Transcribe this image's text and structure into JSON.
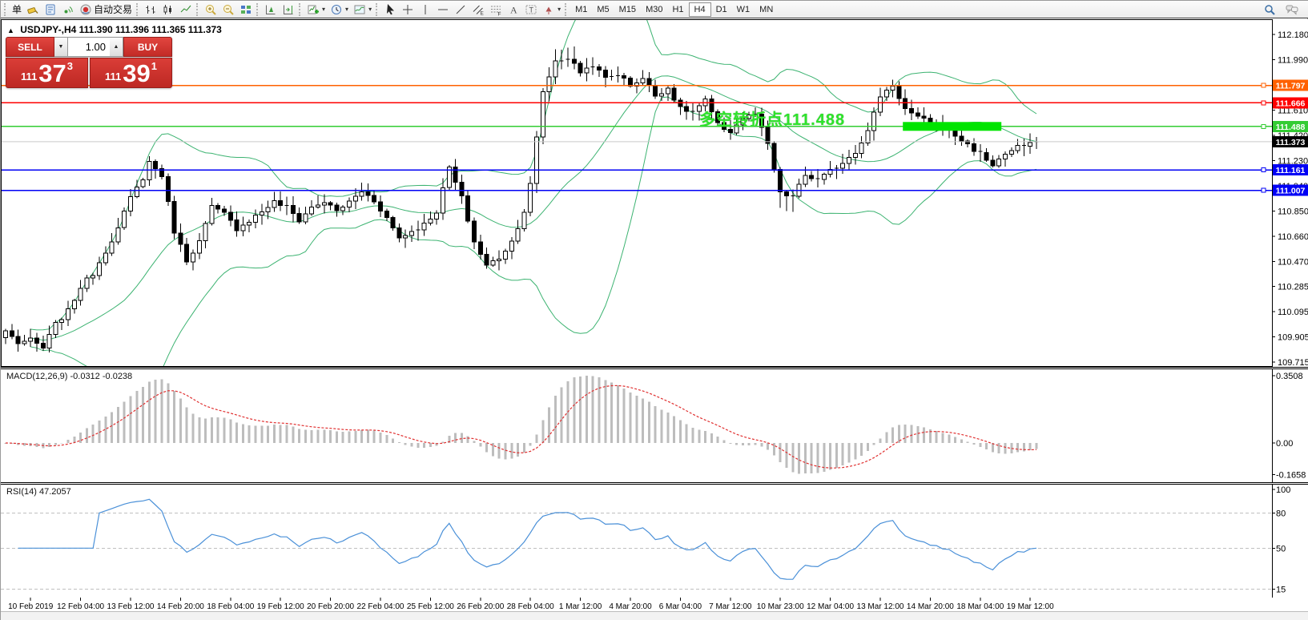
{
  "toolbar": {
    "groups": [
      {
        "items": [
          {
            "name": "new-order",
            "label": "单"
          },
          {
            "name": "styler"
          },
          {
            "name": "metaeditor"
          },
          {
            "name": "signals"
          },
          {
            "name": "autotrading",
            "label": "自动交易"
          }
        ]
      },
      {
        "items": [
          {
            "name": "bar-chart"
          },
          {
            "name": "candlestick-chart"
          },
          {
            "name": "line-chart"
          }
        ]
      },
      {
        "items": [
          {
            "name": "zoom-in"
          },
          {
            "name": "zoom-out"
          },
          {
            "name": "tile-windows"
          }
        ]
      },
      {
        "items": [
          {
            "name": "auto-scroll"
          },
          {
            "name": "chart-shift"
          }
        ]
      },
      {
        "items": [
          {
            "name": "indicators",
            "dropdown": true
          },
          {
            "name": "periods",
            "dropdown": true
          },
          {
            "name": "templates",
            "dropdown": true
          }
        ]
      },
      {
        "items": [
          {
            "name": "cursor"
          },
          {
            "name": "crosshair"
          },
          {
            "name": "vertical-line"
          },
          {
            "name": "horizontal-line"
          },
          {
            "name": "trendline"
          },
          {
            "name": "equidistant-channel"
          },
          {
            "name": "fibonacci"
          },
          {
            "name": "text"
          },
          {
            "name": "text-label"
          },
          {
            "name": "arrows",
            "dropdown": true
          }
        ]
      }
    ],
    "timeframes": [
      "M1",
      "M5",
      "M15",
      "M30",
      "H1",
      "H4",
      "D1",
      "W1",
      "MN"
    ],
    "active_timeframe": "H4",
    "right_icons": [
      {
        "name": "search"
      },
      {
        "name": "chat"
      }
    ]
  },
  "chart_header": {
    "collapse_icon": "▲",
    "symbol": "USDJPY-,H4",
    "ohlc": "111.390 111.396 111.365 111.373"
  },
  "trade_panel": {
    "sell_label": "SELL",
    "buy_label": "BUY",
    "volume": "1.00",
    "spin_down": "▼",
    "spin_up": "▲",
    "sell_price_small": "111",
    "sell_price_big": "37",
    "sell_price_sup": "3",
    "buy_price_small": "111",
    "buy_price_big": "39",
    "buy_price_sup": "1"
  },
  "annotation": {
    "text": "多空转折点111.488",
    "color": "#2ee32b"
  },
  "chart_data": {
    "type": "candlestick",
    "symbol": "USDJPY",
    "timeframe": "H4",
    "x_labels": [
      "10 Feb 2019",
      "12 Feb 04:00",
      "13 Feb 12:00",
      "14 Feb 20:00",
      "18 Feb 04:00",
      "19 Feb 12:00",
      "20 Feb 20:00",
      "22 Feb 04:00",
      "25 Feb 12:00",
      "26 Feb 20:00",
      "28 Feb 04:00",
      "1 Mar 12:00",
      "4 Mar 20:00",
      "6 Mar 04:00",
      "7 Mar 12:00",
      "10 Mar 23:00",
      "12 Mar 04:00",
      "13 Mar 12:00",
      "14 Mar 20:00",
      "18 Mar 04:00",
      "19 Mar 12:00"
    ],
    "candles_per_label": 8,
    "first_label_candle_index": 4,
    "price_path": [
      [
        0,
        109.95
      ],
      [
        2,
        109.86
      ],
      [
        4,
        109.88
      ],
      [
        6,
        109.82
      ],
      [
        8,
        110.0
      ],
      [
        10,
        110.1
      ],
      [
        12,
        110.28
      ],
      [
        14,
        110.38
      ],
      [
        16,
        110.55
      ],
      [
        18,
        110.72
      ],
      [
        20,
        110.95
      ],
      [
        22,
        111.1
      ],
      [
        23,
        111.22
      ],
      [
        25,
        111.12
      ],
      [
        27,
        110.7
      ],
      [
        29,
        110.48
      ],
      [
        31,
        110.62
      ],
      [
        33,
        110.88
      ],
      [
        35,
        110.83
      ],
      [
        37,
        110.72
      ],
      [
        39,
        110.78
      ],
      [
        41,
        110.85
      ],
      [
        43,
        110.92
      ],
      [
        45,
        110.88
      ],
      [
        47,
        110.78
      ],
      [
        49,
        110.88
      ],
      [
        51,
        110.92
      ],
      [
        53,
        110.85
      ],
      [
        55,
        110.92
      ],
      [
        57,
        111.0
      ],
      [
        59,
        110.93
      ],
      [
        61,
        110.8
      ],
      [
        63,
        110.65
      ],
      [
        65,
        110.7
      ],
      [
        67,
        110.75
      ],
      [
        69,
        110.85
      ],
      [
        71,
        111.18
      ],
      [
        73,
        110.95
      ],
      [
        75,
        110.62
      ],
      [
        77,
        110.44
      ],
      [
        79,
        110.5
      ],
      [
        81,
        110.62
      ],
      [
        83,
        110.85
      ],
      [
        84,
        111.05
      ],
      [
        86,
        111.75
      ],
      [
        88,
        111.98
      ],
      [
        90,
        112.0
      ],
      [
        92,
        111.9
      ],
      [
        94,
        111.95
      ],
      [
        96,
        111.85
      ],
      [
        98,
        111.88
      ],
      [
        100,
        111.8
      ],
      [
        102,
        111.85
      ],
      [
        104,
        111.72
      ],
      [
        106,
        111.78
      ],
      [
        108,
        111.62
      ],
      [
        110,
        111.6
      ],
      [
        112,
        111.68
      ],
      [
        114,
        111.5
      ],
      [
        116,
        111.45
      ],
      [
        118,
        111.55
      ],
      [
        120,
        111.58
      ],
      [
        122,
        111.35
      ],
      [
        124,
        110.98
      ],
      [
        126,
        110.96
      ],
      [
        128,
        111.12
      ],
      [
        130,
        111.08
      ],
      [
        132,
        111.15
      ],
      [
        134,
        111.22
      ],
      [
        136,
        111.3
      ],
      [
        138,
        111.45
      ],
      [
        140,
        111.72
      ],
      [
        142,
        111.8
      ],
      [
        144,
        111.62
      ],
      [
        146,
        111.55
      ],
      [
        148,
        111.52
      ],
      [
        150,
        111.48
      ],
      [
        152,
        111.42
      ],
      [
        154,
        111.35
      ],
      [
        156,
        111.28
      ],
      [
        158,
        111.2
      ],
      [
        160,
        111.28
      ],
      [
        162,
        111.33
      ],
      [
        164,
        111.35
      ],
      [
        165,
        111.373
      ]
    ],
    "y_axis": {
      "top_value": 112.2945,
      "bottom_value": 109.679,
      "ticks": [
        {
          "v": 112.18,
          "label": "112.180"
        },
        {
          "v": 111.99,
          "label": "111.990"
        },
        {
          "v": 111.61,
          "label": "111.610"
        },
        {
          "v": 111.42,
          "label": "111.420"
        },
        {
          "v": 111.23,
          "label": "111.230"
        },
        {
          "v": 111.04,
          "label": "111.040"
        },
        {
          "v": 110.85,
          "label": "110.850"
        },
        {
          "v": 110.66,
          "label": "110.660"
        },
        {
          "v": 110.47,
          "label": "110.470"
        },
        {
          "v": 110.285,
          "label": "110.285"
        },
        {
          "v": 110.095,
          "label": "110.095"
        },
        {
          "v": 109.905,
          "label": "109.905"
        },
        {
          "v": 109.715,
          "label": "109.715"
        }
      ]
    },
    "hlines": [
      {
        "price": 111.797,
        "label": "111.797",
        "color": "#ff6100"
      },
      {
        "price": 111.666,
        "label": "111.666",
        "color": "#fe0000"
      },
      {
        "price": 111.488,
        "label": "111.488",
        "color": "#33cc33"
      },
      {
        "price": 111.161,
        "label": "111.161",
        "color": "#0000f5"
      },
      {
        "price": 111.007,
        "label": "111.007",
        "color": "#0000f5"
      }
    ],
    "current_price": {
      "price": 111.373,
      "label": "111.373",
      "line_color": "#c9c9c9",
      "label_bg": "#000000"
    },
    "highlight_bar": {
      "price": 111.488,
      "from_index": 144,
      "to_index": 159,
      "color": "#00e400",
      "thickness": 11
    },
    "bollinger": {
      "period": 20,
      "deviation": 2,
      "color": "#3cb371"
    },
    "candle_colors": {
      "bull_fill": "#ffffff",
      "bear_fill": "#000000",
      "outline": "#000000"
    },
    "macd": {
      "name": "MACD(12,26,9)",
      "v1": "-0.0312",
      "v2": "-0.0238",
      "fast": 12,
      "slow": 26,
      "signal": 9,
      "peak_value": 0.3508,
      "range": [
        -0.205,
        0.385
      ],
      "axis_ticks": [
        {
          "v": 0.3508,
          "label": "0.3508"
        },
        {
          "v": 0,
          "label": "0.00"
        },
        {
          "v": -0.1658,
          "label": "-0.1658"
        }
      ],
      "hist_color": "#bdbdbd",
      "signal_color": "#e03030"
    },
    "rsi": {
      "name": "RSI(14)",
      "value": "47.2057",
      "period": 14,
      "levels": [
        80,
        50,
        15
      ],
      "range": [
        8,
        104
      ],
      "axis_ticks": [
        {
          "v": 100,
          "label": "100"
        },
        {
          "v": 80,
          "label": "80"
        },
        {
          "v": 50,
          "label": "50"
        },
        {
          "v": 15,
          "label": "15"
        }
      ],
      "color": "#4a90d8",
      "level_color": "#bfbfbf"
    }
  }
}
